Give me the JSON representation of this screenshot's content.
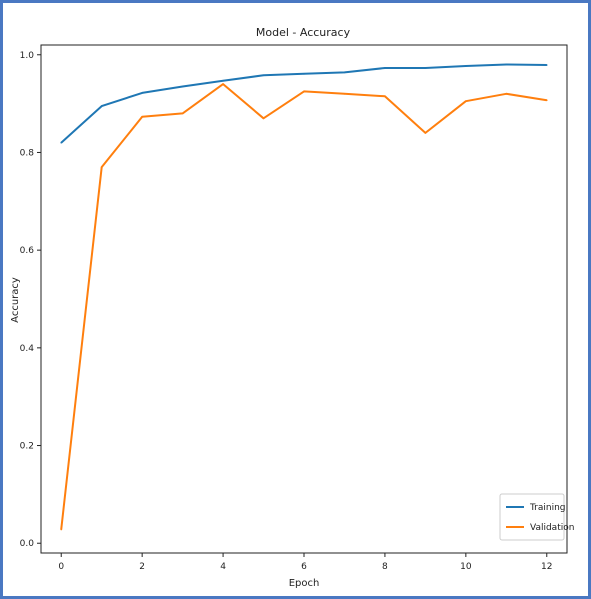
{
  "chart_data": {
    "type": "line",
    "title": "Model - Accuracy",
    "xlabel": "Epoch",
    "ylabel": "Accuracy",
    "xlim": [
      -0.5,
      12.5
    ],
    "ylim": [
      -0.02,
      1.02
    ],
    "xticks": [
      0,
      2,
      4,
      6,
      8,
      10,
      12
    ],
    "yticks": [
      0.0,
      0.2,
      0.4,
      0.6,
      0.8,
      1.0
    ],
    "grid": false,
    "legend_position": "bottom-right",
    "x": [
      0,
      1,
      2,
      3,
      4,
      5,
      6,
      7,
      8,
      9,
      10,
      11,
      12
    ],
    "series": [
      {
        "name": "Training",
        "color": "#1f77b4",
        "values": [
          0.82,
          0.895,
          0.922,
          0.935,
          0.947,
          0.958,
          0.961,
          0.964,
          0.973,
          0.973,
          0.977,
          0.98,
          0.979
        ]
      },
      {
        "name": "Validation",
        "color": "#ff7f0e",
        "values": [
          0.028,
          0.77,
          0.873,
          0.88,
          0.94,
          0.87,
          0.925,
          0.92,
          0.915,
          0.84,
          0.905,
          0.92,
          0.907
        ]
      }
    ]
  }
}
